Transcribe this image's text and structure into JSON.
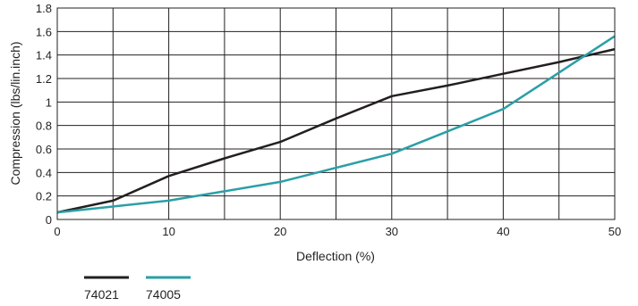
{
  "chart_data": {
    "type": "line",
    "xlabel": "Deflection (%)",
    "ylabel": "Compression (lbs/lin.inch)",
    "xlim": [
      0,
      50
    ],
    "ylim": [
      0,
      1.8
    ],
    "x_ticks": [
      "0",
      "10",
      "20",
      "30",
      "40",
      "50"
    ],
    "y_ticks": [
      "0",
      "0.2",
      "0.4",
      "0.6",
      "0.8",
      "1",
      "1.2",
      "1.4",
      "1.6",
      "1.8"
    ],
    "grid": true,
    "legend_position": "bottom-left",
    "series": [
      {
        "name": "74021",
        "color": "#231f20",
        "points": [
          [
            0,
            0.06
          ],
          [
            5,
            0.16
          ],
          [
            10,
            0.37
          ],
          [
            15,
            0.52
          ],
          [
            20,
            0.66
          ],
          [
            25,
            0.86
          ],
          [
            30,
            1.05
          ],
          [
            35,
            1.14
          ],
          [
            40,
            1.24
          ],
          [
            45,
            1.34
          ],
          [
            50,
            1.45
          ]
        ]
      },
      {
        "name": "74005",
        "color": "#2a9fa6",
        "points": [
          [
            0,
            0.06
          ],
          [
            5,
            0.11
          ],
          [
            10,
            0.16
          ],
          [
            15,
            0.24
          ],
          [
            20,
            0.32
          ],
          [
            25,
            0.44
          ],
          [
            30,
            0.56
          ],
          [
            35,
            0.75
          ],
          [
            40,
            0.94
          ],
          [
            45,
            1.25
          ],
          [
            50,
            1.56
          ]
        ]
      }
    ]
  }
}
